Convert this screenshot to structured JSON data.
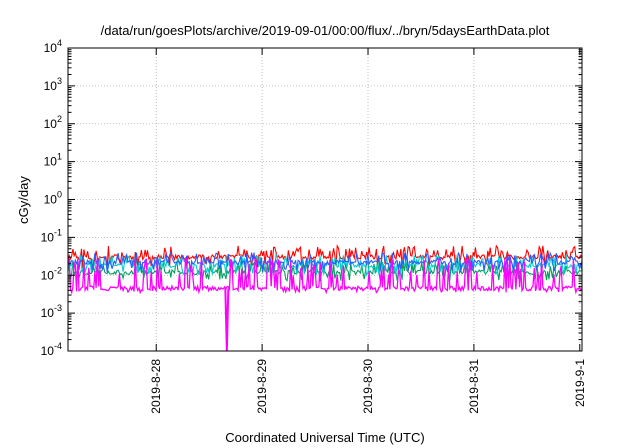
{
  "chart_data": {
    "type": "line",
    "title": "/data/run/goesPlots/archive/2019-09-01/00:00/flux/../bryn/5daysEarthData.plot",
    "xlabel": "Coordinated Universal Time (UTC)",
    "ylabel": "cGy/day",
    "yscale": "log",
    "ylim": [
      0.0001,
      10000
    ],
    "xlim": [
      "2019-08-27T04:00",
      "2019-09-01T00:30"
    ],
    "grid": true,
    "legend": "none",
    "x_ticks": [
      "2019-8-28",
      "2019-8-29",
      "2019-8-30",
      "2019-8-31",
      "2019-9-1"
    ],
    "y_ticks": [
      {
        "base": "10",
        "exp": "-4"
      },
      {
        "base": "10",
        "exp": "-3"
      },
      {
        "base": "10",
        "exp": "-2"
      },
      {
        "base": "10",
        "exp": "-1"
      },
      {
        "base": "10",
        "exp": "0"
      },
      {
        "base": "10",
        "exp": "1"
      },
      {
        "base": "10",
        "exp": "2"
      },
      {
        "base": "10",
        "exp": "3"
      },
      {
        "base": "10",
        "exp": "4"
      }
    ],
    "series": [
      {
        "color": "#ff0000",
        "baseline": 0.03,
        "spike_max": 0.06,
        "dip_min": 0.015
      },
      {
        "color": "#00a060",
        "baseline": 0.012,
        "spike_max": 0.025,
        "dip_min": 0.007
      },
      {
        "color": "#00d0d0",
        "baseline": 0.018,
        "spike_max": 0.035,
        "dip_min": 0.01
      },
      {
        "color": "#2a5cff",
        "baseline": 0.022,
        "spike_max": 0.04,
        "dip_min": 0.012
      },
      {
        "color": "#ff00ff",
        "baseline": 0.0045,
        "spike_max": 0.03,
        "dip_min": 0.0035
      }
    ],
    "events": [
      {
        "series": 4,
        "x": "2019-08-28T16:00",
        "value": 0.0001
      }
    ]
  }
}
